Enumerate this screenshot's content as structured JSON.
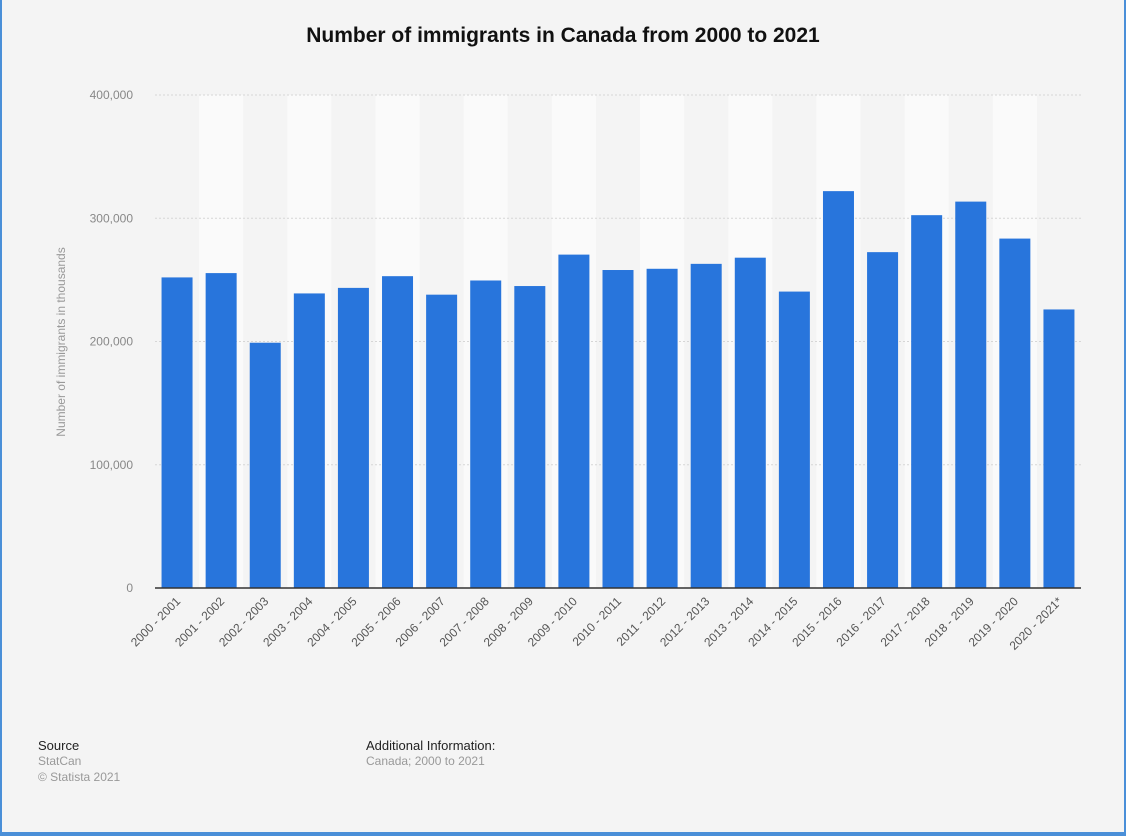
{
  "chart_data": {
    "type": "bar",
    "title": "Number of immigrants in Canada from 2000 to 2021",
    "xlabel": "",
    "ylabel": "Number of immigrants in thousands",
    "ylim": [
      0,
      400000
    ],
    "yticks": [
      0,
      100000,
      200000,
      300000,
      400000
    ],
    "ytick_labels": [
      "0",
      "100,000",
      "200,000",
      "300,000",
      "400,000"
    ],
    "grid": true,
    "bar_color": "#2875dc",
    "categories": [
      "2000 - 2001",
      "2001 - 2002",
      "2002 - 2003",
      "2003 - 2004",
      "2004 - 2005",
      "2005 - 2006",
      "2006 - 2007",
      "2007 - 2008",
      "2008 - 2009",
      "2009 - 2010",
      "2010 - 2011",
      "2011 - 2012",
      "2012 - 2013",
      "2013 - 2014",
      "2014 - 2015",
      "2015 - 2016",
      "2016 - 2017",
      "2017 - 2018",
      "2018 - 2019",
      "2019 - 2020",
      "2020 - 2021*"
    ],
    "values": [
      252000,
      255500,
      199000,
      239000,
      243500,
      253000,
      238000,
      249500,
      245000,
      270500,
      258000,
      259000,
      263000,
      268000,
      240500,
      322000,
      272500,
      302500,
      313500,
      283500,
      226000
    ]
  },
  "footer": {
    "source_heading": "Source",
    "source_lines": [
      "StatCan",
      "© Statista 2021"
    ],
    "info_heading": "Additional Information:",
    "info_lines": [
      "Canada; 2000 to 2021"
    ]
  },
  "colors": {
    "frame_border": "#4a8fd8",
    "background": "#f4f4f4",
    "band": "#fafafa"
  }
}
